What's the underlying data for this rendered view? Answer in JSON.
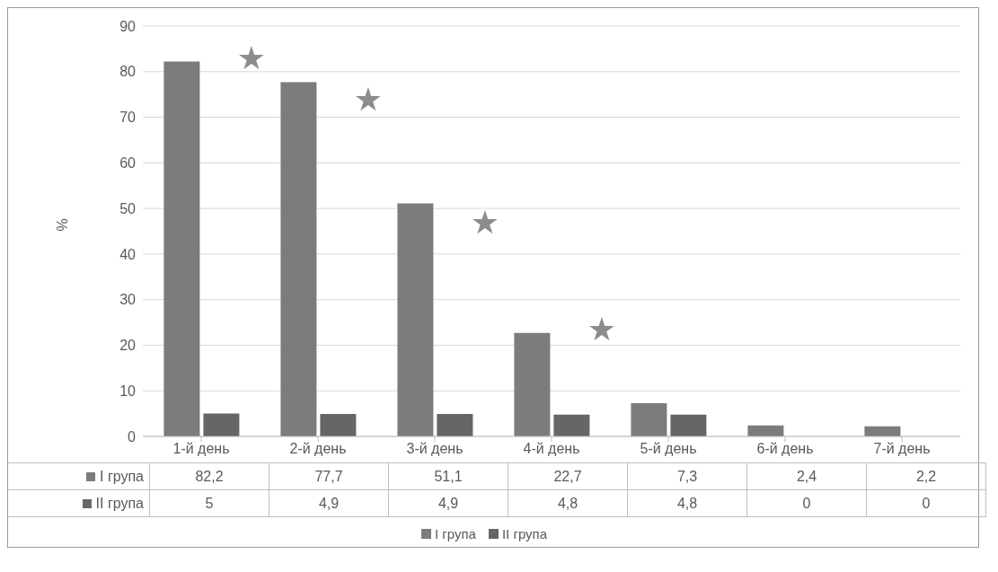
{
  "chart_data": {
    "type": "bar",
    "ylabel": "%",
    "categories": [
      "1-й день",
      "2-й день",
      "3-й день",
      "4-й день",
      "5-й день",
      "6-й день",
      "7-й день"
    ],
    "series": [
      {
        "name": "I група",
        "color": "#7c7c7c",
        "values": [
          82.2,
          77.7,
          51.1,
          22.7,
          7.3,
          2.4,
          2.2
        ],
        "value_labels": [
          "82,2",
          "77,7",
          "51,1",
          "22,7",
          "7,3",
          "2,4",
          "2,2"
        ]
      },
      {
        "name": "II група",
        "color": "#666666",
        "values": [
          5,
          4.9,
          4.9,
          4.8,
          4.8,
          0,
          0
        ],
        "value_labels": [
          "5",
          "4,9",
          "4,9",
          "4,8",
          "4,8",
          "0",
          "0"
        ]
      }
    ],
    "ylim": [
      0,
      90
    ],
    "yticks": [
      0,
      10,
      20,
      30,
      40,
      50,
      60,
      70,
      80,
      90
    ],
    "grid": "y",
    "legend": "bottom",
    "annotations": [
      {
        "text": "★",
        "x": "1-й день",
        "y": 83
      },
      {
        "text": "★",
        "x": "2-й день",
        "y": 74
      },
      {
        "text": "★",
        "x": "3-й день",
        "y": 47
      },
      {
        "text": "★",
        "x": "4-й день",
        "y": 23.5
      }
    ]
  }
}
